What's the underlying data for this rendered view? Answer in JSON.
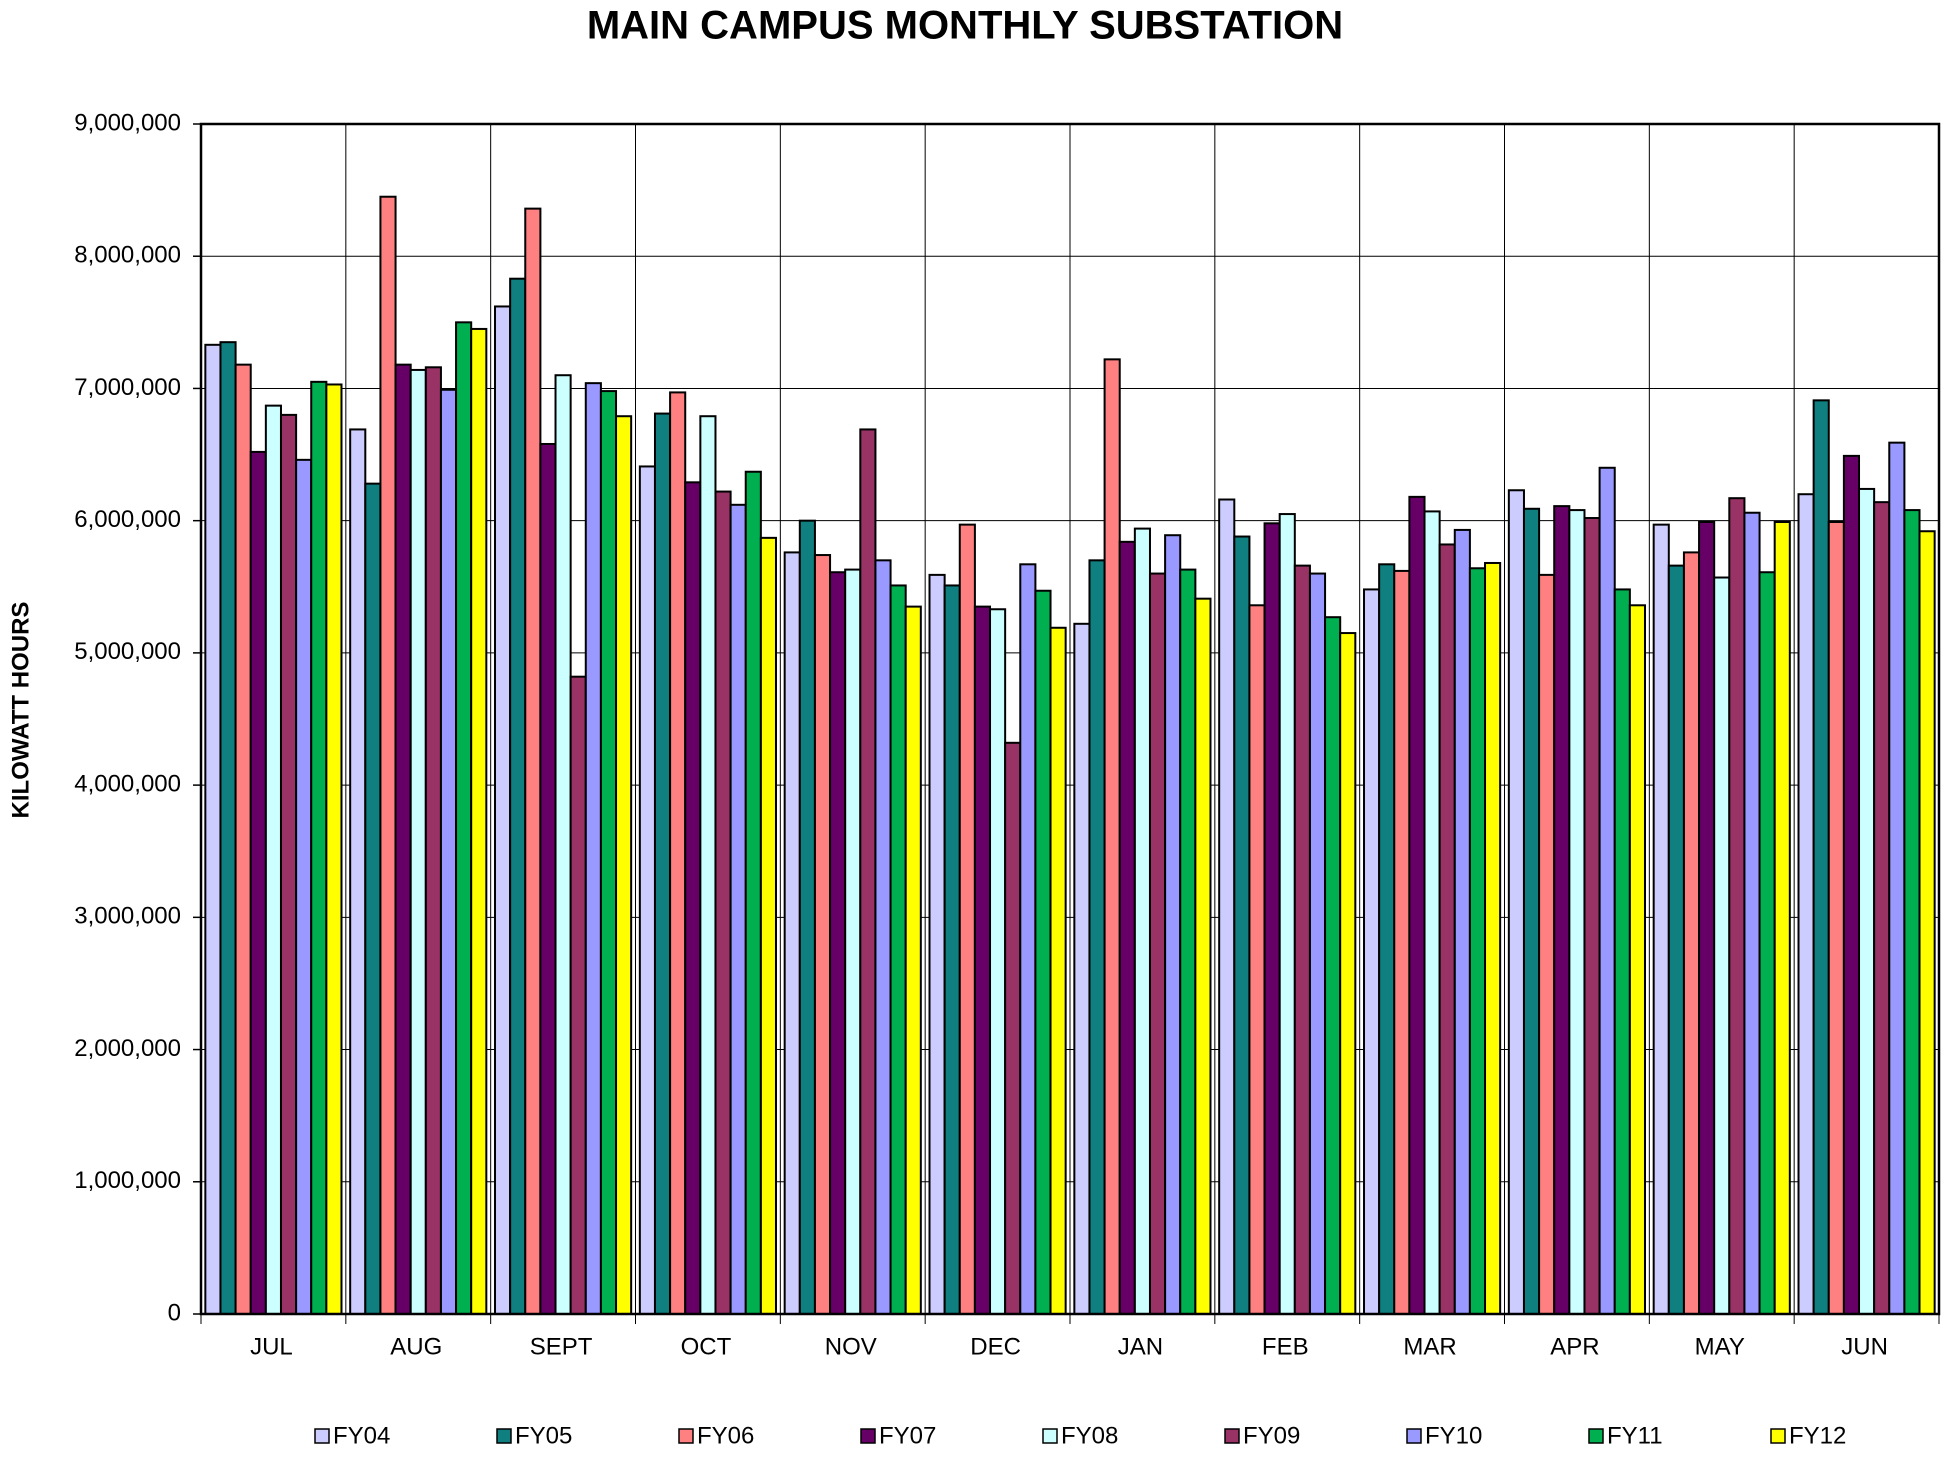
{
  "chart_data": {
    "type": "bar",
    "title": "MAIN CAMPUS MONTHLY SUBSTATION",
    "y_label": "KILOWATT HOURS",
    "categories": [
      "JUL",
      "AUG",
      "SEPT",
      "OCT",
      "NOV",
      "DEC",
      "JAN",
      "FEB",
      "MAR",
      "APR",
      "MAY",
      "JUN"
    ],
    "series": [
      {
        "name": "FY04",
        "color": "#ccccff",
        "values": [
          7330000,
          6690000,
          7620000,
          6410000,
          5760000,
          5590000,
          5220000,
          6160000,
          5480000,
          6230000,
          5970000,
          6200000
        ]
      },
      {
        "name": "FY05",
        "color": "#0f7f7f",
        "values": [
          7350000,
          6280000,
          7830000,
          6810000,
          6000000,
          5510000,
          5700000,
          5880000,
          5670000,
          6090000,
          5660000,
          6910000
        ]
      },
      {
        "name": "FY06",
        "color": "#ff8080",
        "values": [
          7180000,
          8450000,
          8360000,
          6970000,
          5740000,
          5970000,
          7220000,
          5360000,
          5620000,
          5590000,
          5760000,
          5990000
        ]
      },
      {
        "name": "FY07",
        "color": "#660066",
        "values": [
          6520000,
          7180000,
          6580000,
          6290000,
          5610000,
          5350000,
          5840000,
          5980000,
          6180000,
          6110000,
          5990000,
          6490000
        ]
      },
      {
        "name": "FY08",
        "color": "#ccffff",
        "values": [
          6870000,
          7140000,
          7100000,
          6790000,
          5630000,
          5330000,
          5940000,
          6050000,
          6070000,
          6080000,
          5570000,
          6240000
        ]
      },
      {
        "name": "FY09",
        "color": "#993366",
        "values": [
          6800000,
          7160000,
          4820000,
          6220000,
          6690000,
          4320000,
          5600000,
          5660000,
          5820000,
          6020000,
          6170000,
          6140000
        ]
      },
      {
        "name": "FY10",
        "color": "#9999ff",
        "values": [
          6460000,
          6990000,
          7040000,
          6120000,
          5700000,
          5670000,
          5890000,
          5600000,
          5930000,
          6400000,
          6060000,
          6590000
        ]
      },
      {
        "name": "FY11",
        "color": "#00b050",
        "values": [
          7050000,
          7500000,
          6980000,
          6370000,
          5510000,
          5470000,
          5630000,
          5270000,
          5640000,
          5480000,
          5610000,
          6080000
        ]
      },
      {
        "name": "FY12",
        "color": "#ffff00",
        "values": [
          7030000,
          7450000,
          6790000,
          5870000,
          5350000,
          5190000,
          5410000,
          5150000,
          5680000,
          5360000,
          5990000,
          5920000
        ]
      }
    ],
    "ylim": [
      0,
      9000000
    ],
    "yticks": [
      0,
      {
        "value": 1000000,
        "label": "1,000,000"
      },
      {
        "value": 2000000,
        "label": "2,000,000"
      },
      {
        "value": 3000000,
        "label": "3,000,000"
      },
      {
        "value": 4000000,
        "label": "4,000,000"
      },
      {
        "value": 5000000,
        "label": "5,000,000"
      },
      {
        "value": 6000000,
        "label": "6,000,000"
      },
      {
        "value": 7000000,
        "label": "7,000,000"
      },
      {
        "value": 8000000,
        "label": "8,000,000"
      },
      {
        "value": 9000000,
        "label": "9,000,000"
      }
    ],
    "grid": true
  }
}
